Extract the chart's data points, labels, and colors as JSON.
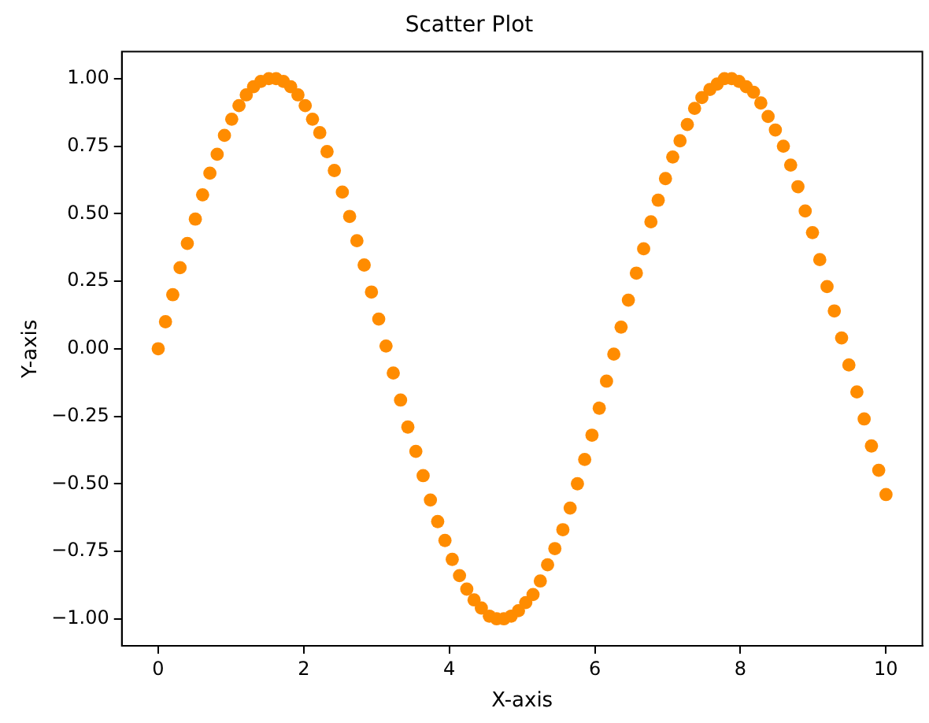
{
  "chart_data": {
    "type": "scatter",
    "title": "Scatter Plot",
    "xlabel": "X-axis",
    "ylabel": "Y-axis",
    "marker": "circle",
    "grid": false,
    "xlim": [
      -0.5,
      10.5
    ],
    "xticks": [
      0,
      2,
      4,
      6,
      8,
      10
    ],
    "ylim": [
      -1.1,
      1.1
    ],
    "yticks": [
      {
        "value": -1,
        "label": "−1.00"
      },
      {
        "value": -0.75,
        "label": "−0.75"
      },
      {
        "value": -0.5,
        "label": "−0.50"
      },
      {
        "value": -0.25,
        "label": "−0.25"
      },
      {
        "value": 0,
        "label": "0.00"
      },
      {
        "value": 0.25,
        "label": "0.25"
      },
      {
        "value": 0.5,
        "label": "0.50"
      },
      {
        "value": 0.75,
        "label": "0.75"
      },
      {
        "value": 1,
        "label": "1.00"
      }
    ],
    "series": [
      {
        "color": "#ff8c00",
        "x": [
          0,
          0.1,
          0.2,
          0.3,
          0.4,
          0.51,
          0.61,
          0.71,
          0.81,
          0.91,
          1.01,
          1.11,
          1.21,
          1.31,
          1.41,
          1.52,
          1.62,
          1.72,
          1.82,
          1.92,
          2.02,
          2.12,
          2.22,
          2.32,
          2.42,
          2.53,
          2.63,
          2.73,
          2.83,
          2.93,
          3.03,
          3.13,
          3.23,
          3.33,
          3.43,
          3.54,
          3.64,
          3.74,
          3.84,
          3.94,
          4.04,
          4.14,
          4.24,
          4.34,
          4.44,
          4.55,
          4.65,
          4.75,
          4.85,
          4.95,
          5.05,
          5.15,
          5.25,
          5.35,
          5.45,
          5.56,
          5.66,
          5.76,
          5.86,
          5.96,
          6.06,
          6.16,
          6.26,
          6.36,
          6.46,
          6.57,
          6.67,
          6.77,
          6.87,
          6.97,
          7.07,
          7.17,
          7.27,
          7.37,
          7.47,
          7.58,
          7.68,
          7.78,
          7.88,
          7.98,
          8.08,
          8.18,
          8.28,
          8.38,
          8.48,
          8.59,
          8.69,
          8.79,
          8.89,
          8.99,
          9.09,
          9.19,
          9.29,
          9.39,
          9.49,
          9.6,
          9.7,
          9.8,
          9.9,
          10.0
        ],
        "values": [
          0,
          0.1,
          0.2,
          0.3,
          0.39,
          0.48,
          0.57,
          0.65,
          0.72,
          0.79,
          0.85,
          0.9,
          0.94,
          0.97,
          0.99,
          1.0,
          1.0,
          0.99,
          0.97,
          0.94,
          0.9,
          0.85,
          0.8,
          0.73,
          0.66,
          0.58,
          0.49,
          0.4,
          0.31,
          0.21,
          0.11,
          0.01,
          -0.09,
          -0.19,
          -0.29,
          -0.38,
          -0.47,
          -0.56,
          -0.64,
          -0.71,
          -0.78,
          -0.84,
          -0.89,
          -0.93,
          -0.96,
          -0.99,
          -1.0,
          -1.0,
          -0.99,
          -0.97,
          -0.94,
          -0.91,
          -0.86,
          -0.8,
          -0.74,
          -0.67,
          -0.59,
          -0.5,
          -0.41,
          -0.32,
          -0.22,
          -0.12,
          -0.02,
          0.08,
          0.18,
          0.28,
          0.37,
          0.47,
          0.55,
          0.63,
          0.71,
          0.77,
          0.83,
          0.89,
          0.93,
          0.96,
          0.98,
          1.0,
          1.0,
          0.99,
          0.97,
          0.95,
          0.91,
          0.86,
          0.81,
          0.75,
          0.68,
          0.6,
          0.51,
          0.43,
          0.33,
          0.23,
          0.14,
          0.04,
          -0.06,
          -0.16,
          -0.26,
          -0.36,
          -0.45,
          -0.54
        ]
      }
    ]
  }
}
